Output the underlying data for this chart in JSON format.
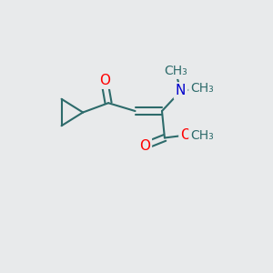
{
  "background_color": "#e8eaeb",
  "bond_color": "#2d6b6b",
  "bond_width": 1.5,
  "atom_colors": {
    "O": "#ff0000",
    "N": "#0000cc",
    "C": "#2d6b6b"
  },
  "font_size_atoms": 11,
  "font_size_methyl": 10,
  "xlim": [
    0,
    10
  ],
  "ylim": [
    0,
    10
  ]
}
